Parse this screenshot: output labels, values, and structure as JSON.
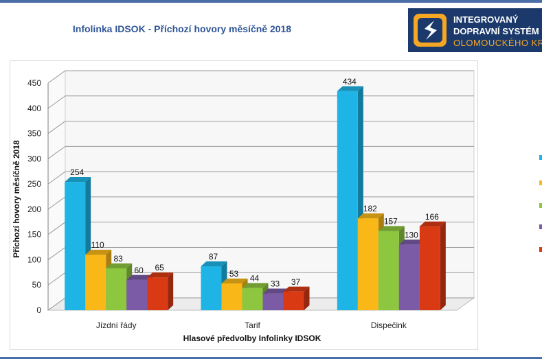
{
  "page": {
    "title": "Infolinka IDSOK - Příchozí hovory měsíčně 2018"
  },
  "logo": {
    "line1": "INTEGROVANÝ",
    "line2": "DOPRAVNÍ SYSTÉM",
    "line3": "OLOMOUCKÉHO KRAJE"
  },
  "chart_data": {
    "type": "bar",
    "title": "Infolinka IDSOK - Příchozí hovory měsíčně 2018",
    "xlabel": "Hlasové předvolby Infolinky IDSOK",
    "ylabel": "Příchozí hovory měsíčně 2018",
    "ylim": [
      0,
      450
    ],
    "yticks": [
      0,
      50,
      100,
      150,
      200,
      250,
      300,
      350,
      400,
      450
    ],
    "grid": true,
    "categories": [
      "Jízdní řády",
      "Tarif",
      "Dispečink"
    ],
    "series": [
      {
        "name": "",
        "color": "#1eb4e6",
        "values": [
          254,
          87,
          434
        ]
      },
      {
        "name": "",
        "color": "#f9b818",
        "values": [
          110,
          53,
          182
        ]
      },
      {
        "name": "",
        "color": "#8dc63f",
        "values": [
          83,
          44,
          157
        ]
      },
      {
        "name": "",
        "color": "#7b5aa6",
        "values": [
          60,
          33,
          130
        ]
      },
      {
        "name": "",
        "color": "#d93a14",
        "values": [
          65,
          37,
          166
        ]
      }
    ],
    "legend_position": "right (cut off)"
  }
}
